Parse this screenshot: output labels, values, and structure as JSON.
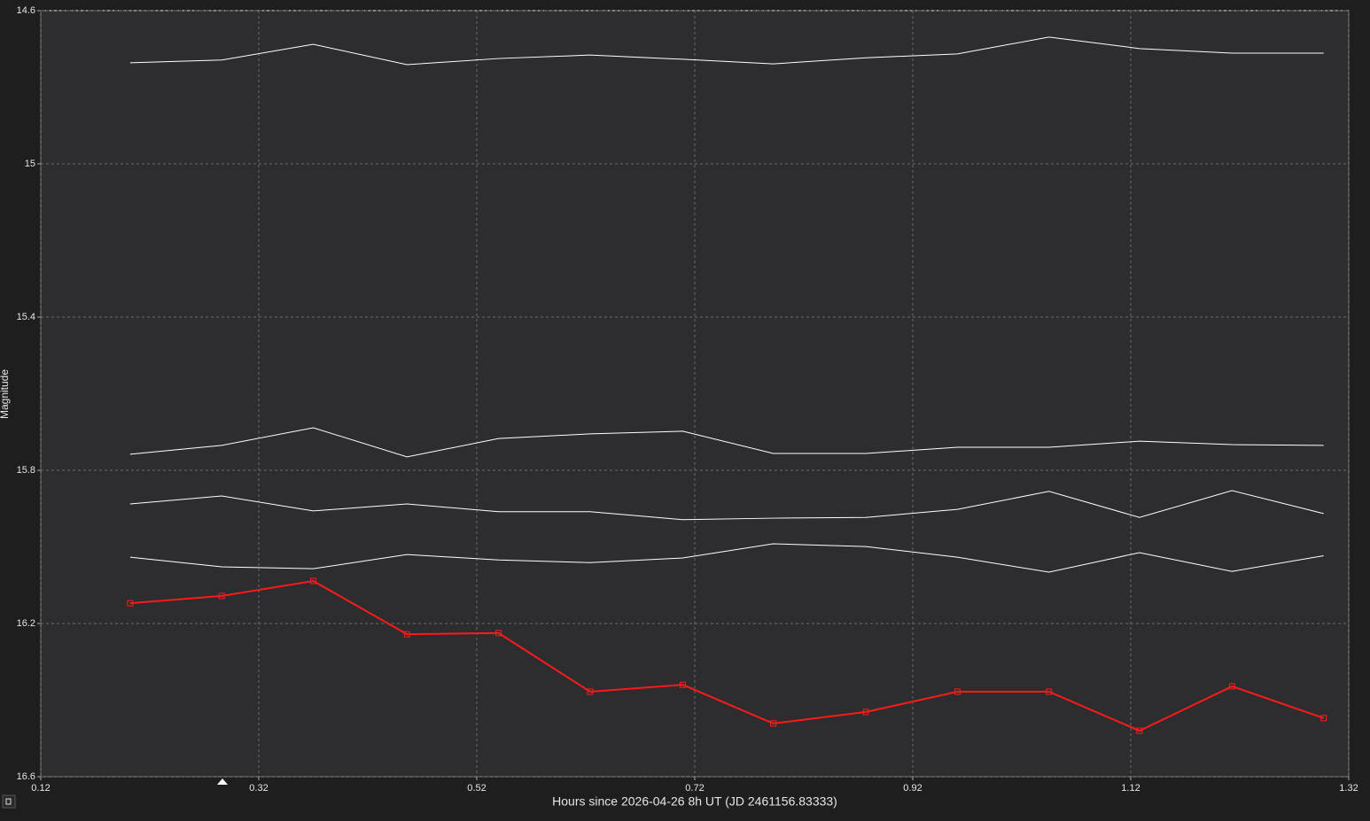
{
  "chart_data": {
    "type": "line",
    "y_label": "Magnitude",
    "x_label": "Hours since 2026-04-26 8h UT (JD 2461156.83333)",
    "xlim": [
      0.12,
      1.32
    ],
    "xticks": [
      0.12,
      0.32,
      0.52,
      0.72,
      0.92,
      1.12,
      1.32
    ],
    "ylim": [
      16.6,
      14.6
    ],
    "yticks": [
      14.6,
      15,
      15.4,
      15.8,
      16.2,
      16.6
    ],
    "grid": true,
    "x": [
      0.202,
      0.286,
      0.37,
      0.456,
      0.54,
      0.624,
      0.709,
      0.792,
      0.877,
      0.961,
      1.045,
      1.128,
      1.213,
      1.297
    ],
    "series": [
      {
        "color": "#ffffff",
        "width": 1,
        "markers": false,
        "values": [
          14.736,
          14.729,
          14.688,
          14.741,
          14.725,
          14.716,
          14.727,
          14.739,
          14.723,
          14.713,
          14.669,
          14.699,
          14.711,
          14.711
        ]
      },
      {
        "color": "#ffffff",
        "width": 1,
        "markers": false,
        "values": [
          15.758,
          15.735,
          15.689,
          15.765,
          15.717,
          15.705,
          15.698,
          15.756,
          15.756,
          15.74,
          15.74,
          15.724,
          15.733,
          15.735
        ]
      },
      {
        "color": "#ffffff",
        "width": 1,
        "markers": false,
        "values": [
          15.888,
          15.867,
          15.906,
          15.888,
          15.908,
          15.908,
          15.929,
          15.925,
          15.923,
          15.902,
          15.855,
          15.923,
          15.853,
          15.913
        ]
      },
      {
        "color": "#ffffff",
        "width": 1,
        "markers": false,
        "values": [
          16.027,
          16.052,
          16.057,
          16.02,
          16.034,
          16.041,
          16.029,
          15.992,
          15.999,
          16.027,
          16.066,
          16.015,
          16.064,
          16.023
        ]
      },
      {
        "color": "#ff1a1a",
        "width": 2,
        "markers": true,
        "values": [
          16.147,
          16.128,
          16.089,
          16.228,
          16.225,
          16.378,
          16.36,
          16.461,
          16.431,
          16.378,
          16.378,
          16.48,
          16.364,
          16.447
        ]
      }
    ]
  }
}
